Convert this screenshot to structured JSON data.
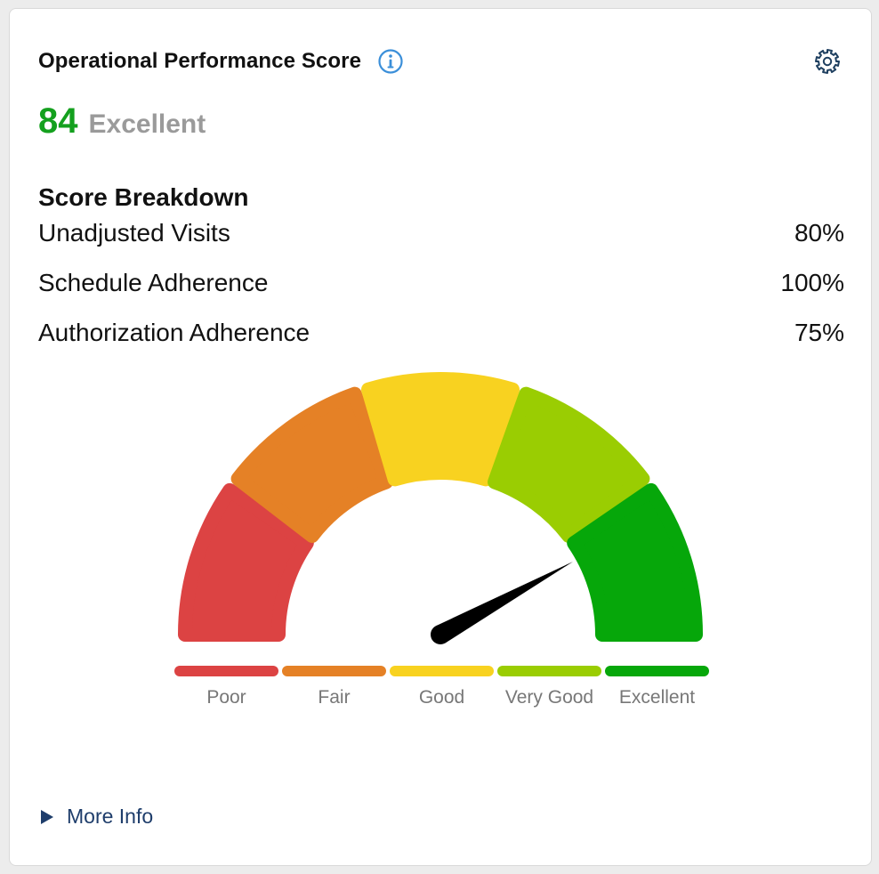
{
  "header": {
    "title": "Operational Performance Score",
    "info_icon": "info-icon",
    "settings_icon": "gear-icon"
  },
  "score": {
    "value": "84",
    "rating": "Excellent",
    "value_color": "#14a01e",
    "rating_color": "#9a9a9a"
  },
  "breakdown": {
    "title": "Score Breakdown",
    "items": [
      {
        "label": "Unadjusted Visits",
        "value": "80%"
      },
      {
        "label": "Schedule Adherence",
        "value": "100%"
      },
      {
        "label": "Authorization Adherence",
        "value": "75%"
      }
    ]
  },
  "gauge": {
    "score": 84,
    "max": 100,
    "segments": [
      {
        "label": "Poor",
        "color": "#dc4343"
      },
      {
        "label": "Fair",
        "color": "#e58126"
      },
      {
        "label": "Good",
        "color": "#f8d220"
      },
      {
        "label": "Very Good",
        "color": "#9acd02"
      },
      {
        "label": "Excellent",
        "color": "#06a70a"
      }
    ],
    "needle_color": "#000000"
  },
  "footer": {
    "more_info_label": "More Info",
    "more_info_icon": "caret-right-icon",
    "link_color": "#1e3d6b"
  }
}
